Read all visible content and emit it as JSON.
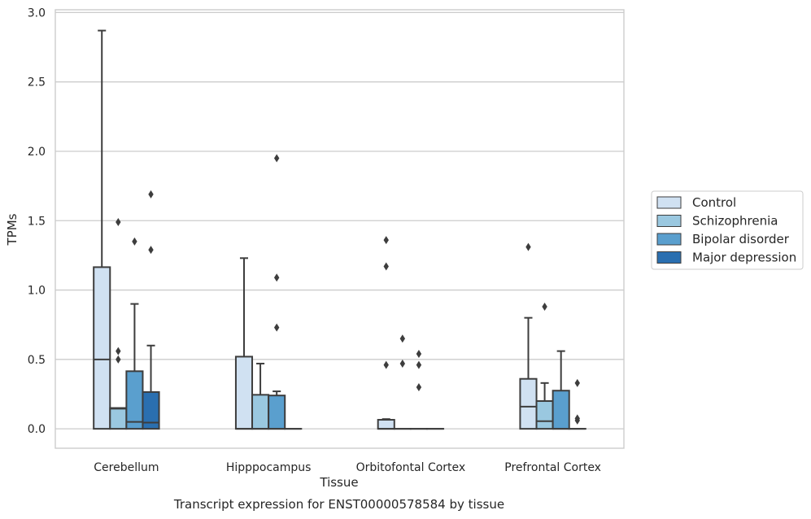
{
  "chart_data": {
    "type": "box",
    "caption": "Transcript expression for ENST00000578584 by tissue",
    "xlabel": "Tissue",
    "ylabel": "TPMs",
    "ylim": [
      -0.14,
      3.02
    ],
    "yticks": [
      "0.0",
      "0.5",
      "1.0",
      "1.5",
      "2.0",
      "2.5",
      "3.0"
    ],
    "ytick_values": [
      0,
      0.5,
      1.0,
      1.5,
      2.0,
      2.5,
      3.0
    ],
    "grid": true,
    "legend_position": "right",
    "categories": [
      "Cerebellum",
      "Hipppocampus",
      "Orbitofontal Cortex",
      "Prefrontal Cortex"
    ],
    "series": [
      {
        "name": "Control",
        "color": "#d0e1f2",
        "boxes": [
          {
            "q1": 0,
            "median": 0.5,
            "q3": 1.165,
            "whislo": 0,
            "whishi": 2.87,
            "fliers": []
          },
          {
            "q1": 0,
            "median": 0,
            "q3": 0.52,
            "whislo": 0,
            "whishi": 1.23,
            "fliers": []
          },
          {
            "q1": 0,
            "median": 0,
            "q3": 0.065,
            "whislo": 0,
            "whishi": 0.07,
            "fliers": [
              0.46,
              1.17,
              1.36
            ]
          },
          {
            "q1": 0,
            "median": 0.16,
            "q3": 0.36,
            "whislo": 0,
            "whishi": 0.8,
            "fliers": [
              1.31
            ]
          }
        ]
      },
      {
        "name": "Schizophrenia",
        "color": "#9ac8e0",
        "boxes": [
          {
            "q1": 0,
            "median": 0.145,
            "q3": 0.15,
            "whislo": 0,
            "whishi": 0.15,
            "fliers": [
              0.5,
              0.56,
              1.49
            ]
          },
          {
            "q1": 0,
            "median": 0,
            "q3": 0.245,
            "whislo": 0,
            "whishi": 0.47,
            "fliers": []
          },
          {
            "q1": 0,
            "median": 0,
            "q3": 0,
            "whislo": 0,
            "whishi": 0,
            "fliers": [
              0.47,
              0.65
            ]
          },
          {
            "q1": 0,
            "median": 0.055,
            "q3": 0.2,
            "whislo": 0,
            "whishi": 0.33,
            "fliers": [
              0.88
            ]
          }
        ]
      },
      {
        "name": "Bipolar disorder",
        "color": "#5a9fce",
        "boxes": [
          {
            "q1": 0,
            "median": 0.05,
            "q3": 0.415,
            "whislo": 0,
            "whishi": 0.9,
            "fliers": [
              1.35
            ]
          },
          {
            "q1": 0,
            "median": 0,
            "q3": 0.24,
            "whislo": 0,
            "whishi": 0.27,
            "fliers": [
              0.73,
              1.09,
              1.95
            ]
          },
          {
            "q1": 0,
            "median": 0,
            "q3": 0,
            "whislo": 0,
            "whishi": 0,
            "fliers": [
              0.3,
              0.46,
              0.54
            ]
          },
          {
            "q1": 0,
            "median": 0,
            "q3": 0.275,
            "whislo": 0,
            "whishi": 0.56,
            "fliers": []
          }
        ]
      },
      {
        "name": "Major depression",
        "color": "#2a6fb0",
        "boxes": [
          {
            "q1": 0,
            "median": 0.045,
            "q3": 0.265,
            "whislo": 0,
            "whishi": 0.6,
            "fliers": [
              1.29,
              1.69
            ]
          },
          {
            "q1": 0,
            "median": 0,
            "q3": 0,
            "whislo": 0,
            "whishi": 0,
            "fliers": []
          },
          {
            "q1": 0,
            "median": 0,
            "q3": 0,
            "whislo": 0,
            "whishi": 0,
            "fliers": []
          },
          {
            "q1": 0,
            "median": 0,
            "q3": 0,
            "whislo": 0,
            "whishi": 0,
            "fliers": [
              0.06,
              0.075,
              0.33
            ]
          }
        ]
      }
    ]
  }
}
